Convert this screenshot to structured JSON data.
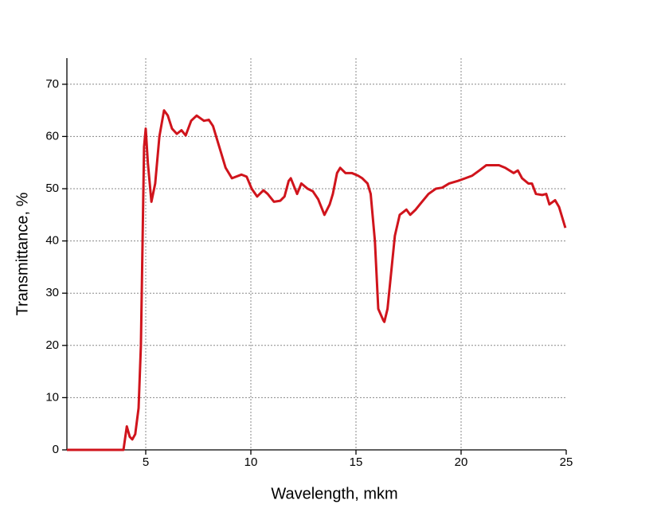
{
  "chart_data": {
    "type": "line",
    "x_label": "Wavelength, mkm",
    "y_label": "Transmittance, %",
    "xlim": [
      1.25,
      25
    ],
    "ylim": [
      0,
      75
    ],
    "xticks": [
      5,
      10,
      15,
      20,
      25
    ],
    "yticks": [
      0,
      10,
      20,
      30,
      40,
      50,
      60,
      70
    ],
    "grid": true,
    "series": [
      {
        "color": "#d0141c",
        "x": [
          1.25,
          3.94,
          4.1,
          4.24,
          4.36,
          4.5,
          4.66,
          4.77,
          4.85,
          4.92,
          5.0,
          5.1,
          5.27,
          5.45,
          5.65,
          5.87,
          6.05,
          6.25,
          6.48,
          6.7,
          6.9,
          7.16,
          7.42,
          7.77,
          8.0,
          8.2,
          8.5,
          8.8,
          9.1,
          9.55,
          9.8,
          10.04,
          10.3,
          10.6,
          10.8,
          11.1,
          11.4,
          11.6,
          11.8,
          11.9,
          12.1,
          12.2,
          12.4,
          12.7,
          12.95,
          13.2,
          13.45,
          13.5,
          13.75,
          13.9,
          14.1,
          14.25,
          14.5,
          14.8,
          15.1,
          15.3,
          15.55,
          15.7,
          15.9,
          16.06,
          16.3,
          16.35,
          16.5,
          16.7,
          16.85,
          17.08,
          17.4,
          17.58,
          17.84,
          18.14,
          18.45,
          18.8,
          19.1,
          19.43,
          19.85,
          20.2,
          20.53,
          20.87,
          21.2,
          21.6,
          21.8,
          22.1,
          22.5,
          22.7,
          22.9,
          23.2,
          23.37,
          23.56,
          23.86,
          24.05,
          24.2,
          24.47,
          24.66,
          24.96
        ],
        "values": [
          0,
          0,
          4.5,
          2.5,
          2,
          3,
          8,
          20,
          40,
          58,
          61.5,
          55,
          47.5,
          51,
          60,
          65,
          64,
          61.5,
          60.5,
          61.2,
          60.2,
          63,
          64,
          63,
          63.2,
          62,
          58,
          54,
          52,
          52.7,
          52.3,
          50,
          48.5,
          49.7,
          49,
          47.5,
          47.7,
          48.5,
          51.5,
          52,
          50,
          49,
          51,
          50,
          49.5,
          48,
          45.5,
          45,
          47,
          49,
          53,
          54,
          53,
          53,
          52.5,
          52,
          51,
          49,
          40,
          27,
          24.8,
          24.5,
          27,
          35,
          41,
          45,
          46,
          45,
          46,
          47.5,
          49,
          50,
          50.2,
          51,
          51.5,
          52,
          52.5,
          53.5,
          54.5,
          54.5,
          54.5,
          54,
          53,
          53.5,
          52,
          51,
          51,
          49,
          48.8,
          49,
          47,
          47.8,
          46.5,
          42.5
        ]
      }
    ]
  }
}
